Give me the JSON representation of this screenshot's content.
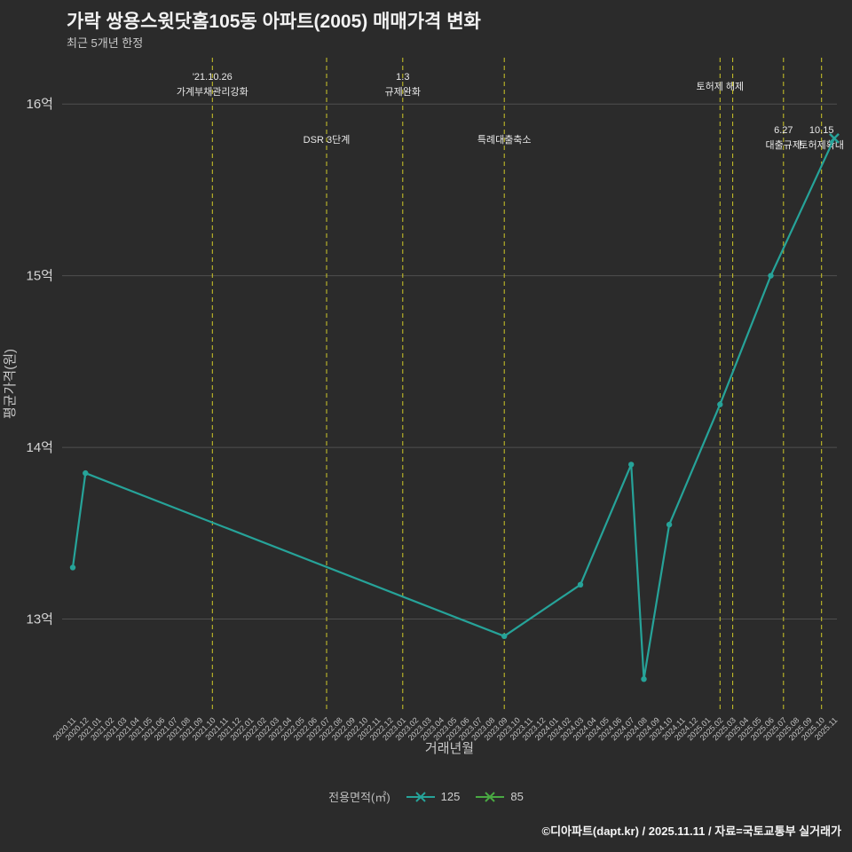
{
  "title": "가락 쌍용스윗닷홈105동 아파트(2005) 매매가격 변화",
  "subtitle": "최근 5개년 한정",
  "colors": {
    "background": "#2b2b2b",
    "series_125": "#26a399",
    "series_85": "#49a942",
    "event_line": "#cfc928",
    "grid": "#4f4f4f",
    "tick_text": "#c5c5c5",
    "label_text": "#e8e8e8"
  },
  "chart_data": {
    "type": "line",
    "title": "가락 쌍용스윗닷홈105동 아파트(2005) 매매가격 변화",
    "subtitle": "최근 5개년 한정",
    "xlabel": "거래년월",
    "ylabel": "평균가격(원)",
    "ylim": [
      12.47,
      16.27
    ],
    "grid": true,
    "legend_position": "bottom",
    "yticks": [
      {
        "value": 13,
        "label": "13억"
      },
      {
        "value": 14,
        "label": "14억"
      },
      {
        "value": 15,
        "label": "15억"
      },
      {
        "value": 16,
        "label": "16억"
      }
    ],
    "categories": [
      "2020.11",
      "2020.12",
      "2021.01",
      "2021.02",
      "2021.03",
      "2021.04",
      "2021.05",
      "2021.06",
      "2021.07",
      "2021.08",
      "2021.09",
      "2021.10",
      "2021.11",
      "2021.12",
      "2022.01",
      "2022.02",
      "2022.03",
      "2022.04",
      "2022.05",
      "2022.06",
      "2022.07",
      "2022.08",
      "2022.09",
      "2022.10",
      "2022.11",
      "2022.12",
      "2023.01",
      "2023.02",
      "2023.03",
      "2023.04",
      "2023.05",
      "2023.06",
      "2023.07",
      "2023.08",
      "2023.09",
      "2023.10",
      "2023.11",
      "2023.12",
      "2024.01",
      "2024.02",
      "2024.03",
      "2024.04",
      "2024.05",
      "2024.06",
      "2024.07",
      "2024.08",
      "2024.09",
      "2024.10",
      "2024.11",
      "2024.12",
      "2025.01",
      "2025.02",
      "2025.03",
      "2025.04",
      "2025.05",
      "2025.06",
      "2025.07",
      "2025.08",
      "2025.09",
      "2025.10",
      "2025.11"
    ],
    "series": [
      {
        "name": "125",
        "color": "#26a399",
        "last_marker": "x",
        "points": [
          {
            "x": "2020.11",
            "y": 13.3
          },
          {
            "x": "2020.12",
            "y": 13.85
          },
          {
            "x": "2023.09",
            "y": 12.9
          },
          {
            "x": "2024.03",
            "y": 13.2
          },
          {
            "x": "2024.07",
            "y": 13.9
          },
          {
            "x": "2024.08",
            "y": 12.65
          },
          {
            "x": "2024.10",
            "y": 13.55
          },
          {
            "x": "2025.02",
            "y": 14.25
          },
          {
            "x": "2025.06",
            "y": 15.0
          },
          {
            "x": "2025.11",
            "y": 15.8
          }
        ]
      },
      {
        "name": "85",
        "color": "#49a942",
        "last_marker": "x",
        "points": []
      }
    ],
    "events": [
      {
        "x": "2021.10",
        "position": "high",
        "lines": [
          "'21.10.26",
          "가계부채관리강화"
        ]
      },
      {
        "x": "2022.07",
        "position": "low",
        "lines": [
          "DSR 3단계"
        ]
      },
      {
        "x": "2023.01",
        "position": "high",
        "lines": [
          "1.3",
          "규제완화"
        ]
      },
      {
        "x": "2023.09",
        "position": "low",
        "lines": [
          "특례대출축소"
        ]
      },
      {
        "x": "2025.02",
        "position": "high",
        "lines": [
          "토허제 해제"
        ]
      },
      {
        "x": "2025.03",
        "position": "high",
        "lines": []
      },
      {
        "x": "2025.07",
        "position": "low",
        "lines": [
          "6.27",
          "대출규제"
        ]
      },
      {
        "x": "2025.10",
        "position": "low",
        "lines": [
          "10.15",
          "토허제확대"
        ]
      }
    ]
  },
  "legend": {
    "label": "전용면적(㎡)",
    "items": [
      {
        "name": "125"
      },
      {
        "name": "85"
      }
    ]
  },
  "footer": "©디아파트(dapt.kr) / 2025.11.11 / 자료=국토교통부 실거래가"
}
